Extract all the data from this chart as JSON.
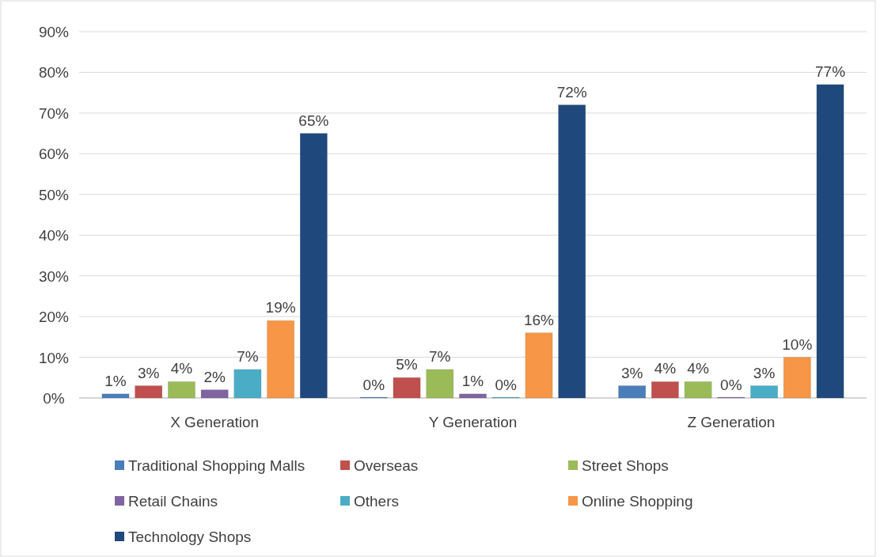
{
  "chart_data": {
    "type": "bar",
    "categories": [
      "X Generation",
      "Y Generation",
      "Z Generation"
    ],
    "series": [
      {
        "name": "Traditional Shopping Malls",
        "color": "#4a7ebb",
        "values": [
          1,
          0,
          3
        ],
        "value_labels": [
          "1%",
          "0%",
          "3%"
        ]
      },
      {
        "name": "Overseas",
        "color": "#c0504d",
        "values": [
          3,
          5,
          4
        ],
        "value_labels": [
          "3%",
          "5%",
          "4%"
        ]
      },
      {
        "name": "Street Shops",
        "color": "#9bbb59",
        "values": [
          4,
          7,
          4
        ],
        "value_labels": [
          "4%",
          "7%",
          "4%"
        ]
      },
      {
        "name": "Retail Chains",
        "color": "#8064a2",
        "values": [
          2,
          1,
          0
        ],
        "value_labels": [
          "2%",
          "1%",
          "0%"
        ]
      },
      {
        "name": "Others",
        "color": "#4bacc6",
        "values": [
          7,
          0,
          3
        ],
        "value_labels": [
          "7%",
          "0%",
          "3%"
        ]
      },
      {
        "name": "Online Shopping",
        "color": "#f79646",
        "values": [
          19,
          16,
          10
        ],
        "value_labels": [
          "19%",
          "16%",
          "10%"
        ]
      },
      {
        "name": "Technology Shops",
        "color": "#1f497d",
        "values": [
          65,
          72,
          77
        ],
        "value_labels": [
          "65%",
          "72%",
          "77%"
        ]
      }
    ],
    "ylim": [
      0,
      90
    ],
    "yticks": [
      {
        "value": 0,
        "label": "0%"
      },
      {
        "value": 10,
        "label": "10%"
      },
      {
        "value": 20,
        "label": "20%"
      },
      {
        "value": 30,
        "label": "30%"
      },
      {
        "value": 40,
        "label": "40%"
      },
      {
        "value": 50,
        "label": "50%"
      },
      {
        "value": 60,
        "label": "60%"
      },
      {
        "value": 70,
        "label": "70%"
      },
      {
        "value": 80,
        "label": "80%"
      },
      {
        "value": 90,
        "label": "90%"
      }
    ],
    "grid": "y",
    "legend": "bottom"
  }
}
